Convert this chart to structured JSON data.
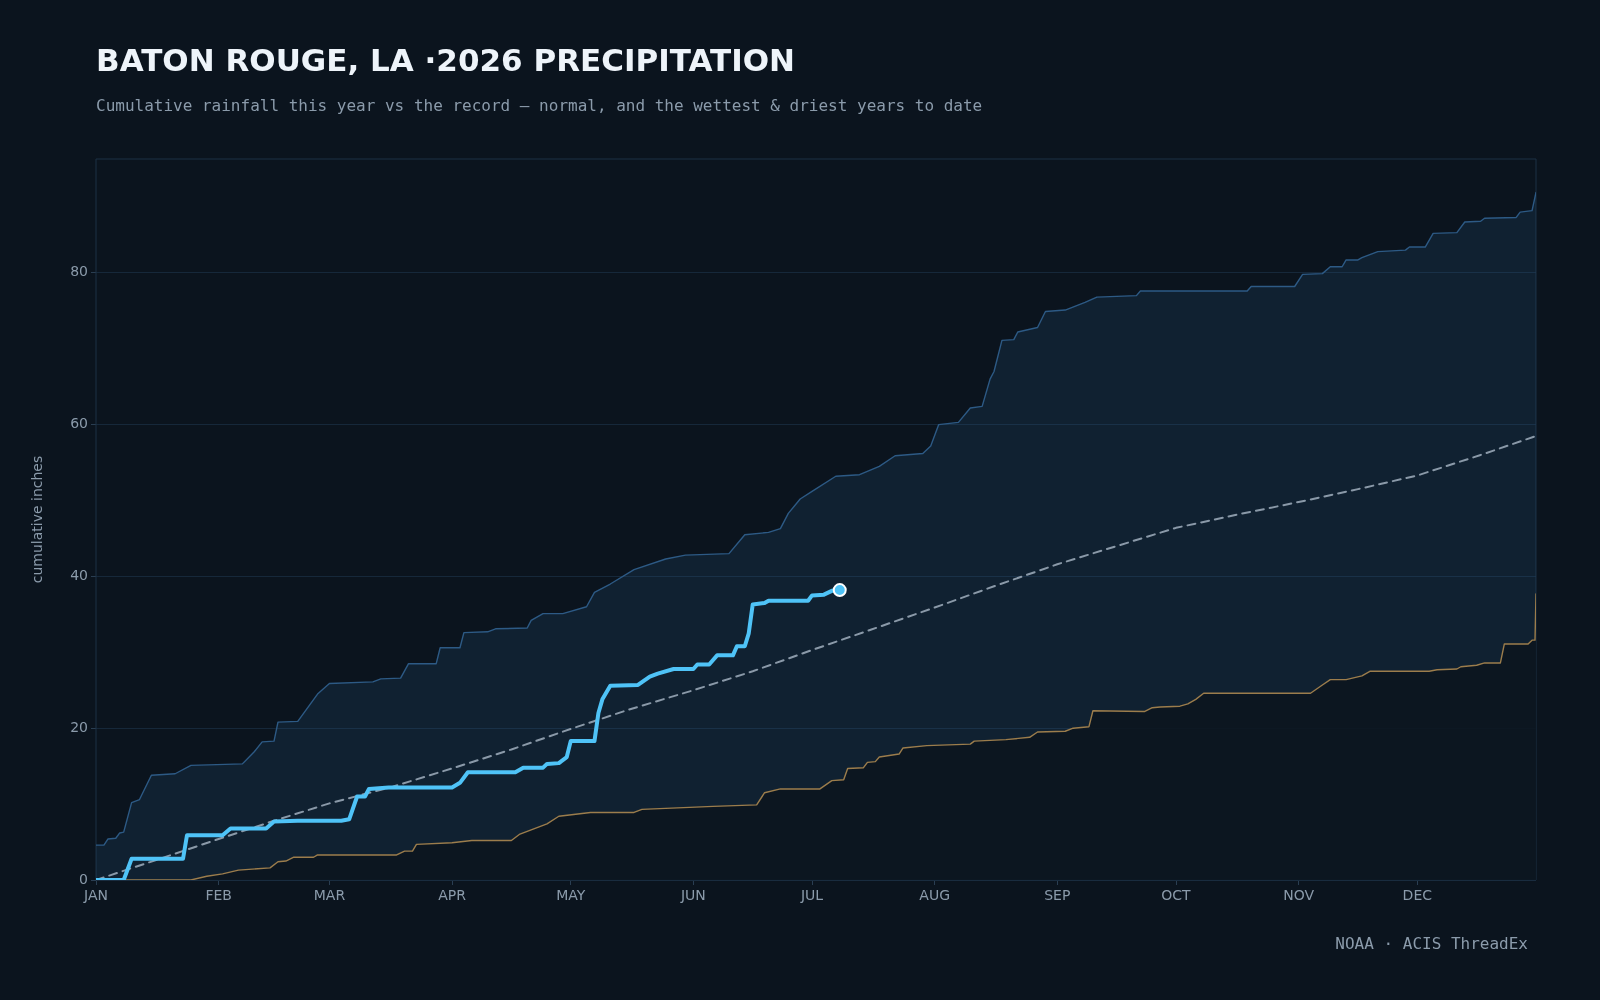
{
  "chart_data": {
    "type": "line",
    "title": "BATON ROUGE, LA ·2026 PRECIPITATION",
    "subtitle": "Cumulative rainfall this year vs the record — normal, and the wettest & driest years to date",
    "ylabel": "cumulative inches",
    "xlim": [
      "2026-01-01",
      "2026-12-31"
    ],
    "xticks": [
      {
        "value": "2026-01-01",
        "label": "JAN"
      },
      {
        "value": "2026-02-01",
        "label": "FEB"
      },
      {
        "value": "2026-03-01",
        "label": "MAR"
      },
      {
        "value": "2026-04-01",
        "label": "APR"
      },
      {
        "value": "2026-05-01",
        "label": "MAY"
      },
      {
        "value": "2026-06-01",
        "label": "JUN"
      },
      {
        "value": "2026-07-01",
        "label": "JUL"
      },
      {
        "value": "2026-08-01",
        "label": "AUG"
      },
      {
        "value": "2026-09-01",
        "label": "SEP"
      },
      {
        "value": "2026-10-01",
        "label": "OCT"
      },
      {
        "value": "2026-11-01",
        "label": "NOV"
      },
      {
        "value": "2026-12-01",
        "label": "DEC"
      }
    ],
    "ylim": [
      0,
      95
    ],
    "yticks": [
      0,
      20,
      40,
      60,
      80
    ],
    "grid": "y",
    "legend": false,
    "annotations": [
      "NOAA · ACIS ThreadEx"
    ],
    "series": [
      {
        "type": "area",
        "color": "#2d5a85",
        "x": [
          "2026-01-01",
          "2026-01-03",
          "2026-01-04",
          "2026-01-06",
          "2026-01-07",
          "2026-01-08",
          "2026-01-10",
          "2026-01-12",
          "2026-01-15",
          "2026-01-21",
          "2026-01-25",
          "2026-02-07",
          "2026-02-10",
          "2026-02-12",
          "2026-02-15",
          "2026-02-16",
          "2026-02-21",
          "2026-02-26",
          "2026-03-01",
          "2026-03-12",
          "2026-03-14",
          "2026-03-19",
          "2026-03-21",
          "2026-03-28",
          "2026-03-29",
          "2026-04-03",
          "2026-04-04",
          "2026-04-10",
          "2026-04-12",
          "2026-04-20",
          "2026-04-21",
          "2026-04-24",
          "2026-04-29",
          "2026-05-05",
          "2026-05-07",
          "2026-05-11",
          "2026-05-17",
          "2026-05-25",
          "2026-05-30",
          "2026-06-10",
          "2026-06-14",
          "2026-06-20",
          "2026-06-23",
          "2026-06-25",
          "2026-06-28",
          "2026-07-01",
          "2026-07-07",
          "2026-07-13",
          "2026-07-18",
          "2026-07-22",
          "2026-07-29",
          "2026-07-31",
          "2026-08-02",
          "2026-08-07",
          "2026-08-10",
          "2026-08-13",
          "2026-08-15",
          "2026-08-16",
          "2026-08-18",
          "2026-08-21",
          "2026-08-22",
          "2026-08-27",
          "2026-08-29",
          "2026-09-03",
          "2026-09-08",
          "2026-09-11",
          "2026-09-21",
          "2026-09-22",
          "2026-10-19",
          "2026-10-20",
          "2026-10-31",
          "2026-11-02",
          "2026-11-07",
          "2026-11-09",
          "2026-11-12",
          "2026-11-13",
          "2026-11-16",
          "2026-11-17",
          "2026-11-21",
          "2026-11-28",
          "2026-11-29",
          "2026-12-03",
          "2026-12-05",
          "2026-12-11",
          "2026-12-13",
          "2026-12-17",
          "2026-12-18",
          "2026-12-26",
          "2026-12-27",
          "2026-12-30",
          "2026-12-31"
        ],
        "values": [
          4.6,
          4.6,
          5.4,
          5.5,
          6.2,
          6.3,
          10.2,
          10.6,
          13.8,
          14,
          15.1,
          15.3,
          16.9,
          18.2,
          18.3,
          20.8,
          20.9,
          24.5,
          25.9,
          26.1,
          26.5,
          26.6,
          28.5,
          28.5,
          30.6,
          30.6,
          32.6,
          32.7,
          33.1,
          33.2,
          34.2,
          35.1,
          35.1,
          36,
          37.9,
          39,
          40.9,
          42.3,
          42.8,
          43,
          45.5,
          45.8,
          46.3,
          48.3,
          50.2,
          51.2,
          53.2,
          53.4,
          54.5,
          55.9,
          56.2,
          57.2,
          60,
          60.3,
          62.2,
          62.4,
          66,
          67,
          71.1,
          71.2,
          72.2,
          72.8,
          74.9,
          75.1,
          76.1,
          76.8,
          77,
          77.6,
          77.6,
          78.2,
          78.2,
          79.8,
          79.9,
          80.8,
          80.8,
          81.7,
          81.7,
          82,
          82.8,
          83,
          83.4,
          83.4,
          85.2,
          85.3,
          86.7,
          86.8,
          87.2,
          87.3,
          88,
          88.2,
          90.6
        ]
      },
      {
        "type": "area",
        "color": "#9c7d4c",
        "x": [
          "2026-01-01",
          "2026-01-25",
          "2026-01-29",
          "2026-02-02",
          "2026-02-06",
          "2026-02-14",
          "2026-02-16",
          "2026-02-18",
          "2026-02-20",
          "2026-02-25",
          "2026-02-26",
          "2026-03-18",
          "2026-03-20",
          "2026-03-22",
          "2026-03-23",
          "2026-04-01",
          "2026-04-06",
          "2026-04-16",
          "2026-04-18",
          "2026-04-21",
          "2026-04-25",
          "2026-04-28",
          "2026-05-06",
          "2026-05-17",
          "2026-05-19",
          "2026-06-06",
          "2026-06-17",
          "2026-06-19",
          "2026-06-23",
          "2026-07-03",
          "2026-07-06",
          "2026-07-09",
          "2026-07-10",
          "2026-07-14",
          "2026-07-15",
          "2026-07-17",
          "2026-07-18",
          "2026-07-23",
          "2026-07-24",
          "2026-07-30",
          "2026-08-10",
          "2026-08-11",
          "2026-08-19",
          "2026-08-25",
          "2026-08-27",
          "2026-09-03",
          "2026-09-05",
          "2026-09-09",
          "2026-09-10",
          "2026-09-23",
          "2026-09-25",
          "2026-09-27",
          "2026-10-02",
          "2026-10-04",
          "2026-10-06",
          "2026-10-08",
          "2026-11-04",
          "2026-11-07",
          "2026-11-09",
          "2026-11-13",
          "2026-11-17",
          "2026-11-19",
          "2026-12-04",
          "2026-12-06",
          "2026-12-11",
          "2026-12-12",
          "2026-12-16",
          "2026-12-18",
          "2026-12-22",
          "2026-12-23",
          "2026-12-29",
          "2026-12-30",
          "2026-12-30T18:00",
          "2026-12-31"
        ],
        "values": [
          0,
          0,
          0.5,
          0.8,
          1.3,
          1.6,
          2.4,
          2.5,
          3,
          3,
          3.3,
          3.3,
          3.8,
          3.8,
          4.7,
          4.9,
          5.2,
          5.2,
          6,
          6.6,
          7.4,
          8.4,
          8.9,
          8.9,
          9.3,
          9.7,
          9.9,
          11.5,
          12,
          12,
          13.1,
          13.2,
          14.7,
          14.8,
          15.5,
          15.6,
          16.2,
          16.6,
          17.4,
          17.7,
          17.9,
          18.3,
          18.5,
          18.8,
          19.5,
          19.6,
          20,
          20.2,
          22.3,
          22.2,
          22.7,
          22.8,
          22.9,
          23.2,
          23.8,
          24.6,
          24.6,
          25.7,
          26.4,
          26.4,
          26.9,
          27.5,
          27.5,
          27.7,
          27.8,
          28.1,
          28.3,
          28.6,
          28.6,
          31.1,
          31.1,
          31.6,
          31.6,
          37.7
        ]
      },
      {
        "color": "#8a99a8",
        "line_style": "dashed",
        "x": [
          "2026-01-01",
          "2026-01-16",
          "2026-02-01",
          "2026-02-15",
          "2026-03-01",
          "2026-03-17",
          "2026-04-01",
          "2026-04-16",
          "2026-05-01",
          "2026-05-16",
          "2026-06-01",
          "2026-06-16",
          "2026-07-01",
          "2026-07-16",
          "2026-08-01",
          "2026-08-16",
          "2026-09-01",
          "2026-09-16",
          "2026-10-01",
          "2026-10-17",
          "2026-11-01",
          "2026-11-16",
          "2026-12-01",
          "2026-12-17",
          "2026-12-31"
        ],
        "values": [
          0,
          2.6,
          5.4,
          7.8,
          10.1,
          12.3,
          14.7,
          17.2,
          19.9,
          22.5,
          25,
          27.5,
          30.3,
          33,
          35.9,
          38.7,
          41.6,
          44,
          46.4,
          48.2,
          49.8,
          51.5,
          53.3,
          56,
          58.5
        ]
      },
      {
        "color": "#4fc3f7",
        "x": [
          "2026-01-01",
          "2026-01-08",
          "2026-01-10",
          "2026-01-23",
          "2026-01-24",
          "2026-02-02",
          "2026-02-04",
          "2026-02-13",
          "2026-02-15",
          "2026-02-21",
          "2026-03-04",
          "2026-03-06",
          "2026-03-08",
          "2026-03-10",
          "2026-03-11",
          "2026-03-16",
          "2026-04-01",
          "2026-04-03",
          "2026-04-05",
          "2026-04-17",
          "2026-04-19",
          "2026-04-24",
          "2026-04-25",
          "2026-04-28",
          "2026-04-30",
          "2026-05-01",
          "2026-05-07",
          "2026-05-08",
          "2026-05-09",
          "2026-05-11",
          "2026-05-18",
          "2026-05-21",
          "2026-05-23",
          "2026-05-27",
          "2026-06-01",
          "2026-06-02",
          "2026-06-05",
          "2026-06-07",
          "2026-06-11",
          "2026-06-12",
          "2026-06-14",
          "2026-06-15",
          "2026-06-16",
          "2026-06-19",
          "2026-06-20",
          "2026-06-30",
          "2026-07-01",
          "2026-07-04",
          "2026-07-06",
          "2026-07-08"
        ],
        "values": [
          0,
          0,
          2.8,
          2.8,
          5.9,
          5.9,
          6.8,
          6.8,
          7.7,
          7.8,
          7.8,
          8,
          11,
          11,
          12,
          12.2,
          12.2,
          12.8,
          14.2,
          14.2,
          14.8,
          14.8,
          15.3,
          15.4,
          16.2,
          18.3,
          18.3,
          22,
          23.8,
          25.6,
          25.7,
          26.8,
          27.2,
          27.8,
          27.8,
          28.4,
          28.4,
          29.6,
          29.6,
          30.8,
          30.8,
          32.5,
          36.3,
          36.5,
          36.8,
          36.8,
          37.5,
          37.6,
          38.1,
          38.2
        ]
      },
      {
        "type": "scatter",
        "color": "#4fc3f7",
        "marker": "circle",
        "x": [
          "2026-07-08"
        ],
        "values": [
          38.2
        ]
      }
    ]
  }
}
